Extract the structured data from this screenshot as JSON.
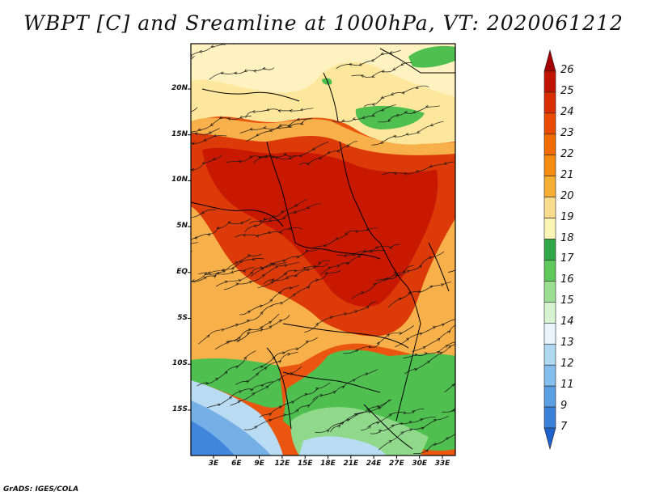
{
  "title": "WBPT [C] and Sreamline at 1000hPa, VT: 2020061212",
  "footer": "GrADS: IGES/COLA",
  "latitude_labels": [
    "20N",
    "15N",
    "10N",
    "5N",
    "EQ",
    "5S",
    "10S",
    "15S"
  ],
  "longitude_labels": [
    "3E",
    "6E",
    "9E",
    "12E",
    "15E",
    "18E",
    "21E",
    "24E",
    "27E",
    "30E",
    "33E"
  ],
  "colorbar": {
    "labels": [
      "26",
      "25",
      "24",
      "23",
      "22",
      "21",
      "20",
      "19",
      "18",
      "17",
      "16",
      "15",
      "14",
      "13",
      "12",
      "11",
      "9",
      "7"
    ],
    "colors": [
      "#a50000",
      "#c21400",
      "#d92e00",
      "#e84a00",
      "#f06a00",
      "#f48c10",
      "#f7ae35",
      "#fadd8c",
      "#fdf4b8",
      "#31a84a",
      "#5ec85a",
      "#9ade90",
      "#d6f3d0",
      "#e8f4fa",
      "#b0d8f2",
      "#85bdec",
      "#5c9ee4",
      "#3a7fd8",
      "#1f62cc"
    ]
  },
  "map_palette": {
    "deep_red": "#c81800",
    "red": "#dc3a08",
    "orange_red": "#ea5610",
    "orange": "#f28a2a",
    "light_orange": "#f8b04a",
    "yellow": "#fde79c",
    "pale_yellow": "#fef3c0",
    "green": "#4fbf4f",
    "light_green": "#90d98a",
    "pale_green": "#c9eec2",
    "light_blue": "#b9dcf2",
    "blue": "#74b0e6",
    "deep_blue": "#3f86dc"
  }
}
